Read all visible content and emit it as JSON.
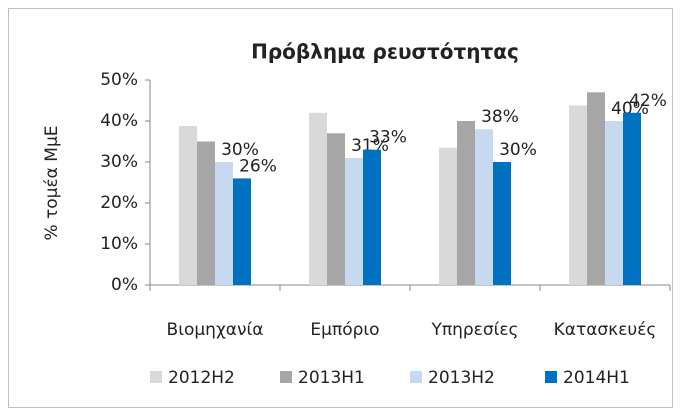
{
  "chart_data": {
    "type": "bar",
    "title": "Πρόβλημα ρευστότητας",
    "y_label": "% τομέα ΜμΕ",
    "categories": [
      "Βιομηχανία",
      "Εμπόριο",
      "Υπηρεσίες",
      "Κατασκευές"
    ],
    "series": [
      {
        "name": "2012H2",
        "color": "#d9d9d9",
        "values": [
          38.8,
          42,
          33.5,
          43.8
        ]
      },
      {
        "name": "2013H1",
        "color": "#a6a6a6",
        "values": [
          35,
          37,
          40,
          47
        ]
      },
      {
        "name": "2013H2",
        "color": "#c6d9f1",
        "values": [
          30,
          31,
          38,
          40
        ],
        "value_labels": [
          "30%",
          "31%",
          "38%",
          "40%"
        ]
      },
      {
        "name": "2014H1",
        "color": "#0070c0",
        "values": [
          26,
          33,
          30,
          42
        ],
        "value_labels": [
          "26%",
          "33%",
          "30%",
          "42%"
        ]
      }
    ],
    "ylim": [
      0,
      50
    ],
    "yticks": [
      {
        "value": 0,
        "label": "0%"
      },
      {
        "value": 10,
        "label": "10%"
      },
      {
        "value": 20,
        "label": "20%"
      },
      {
        "value": 30,
        "label": "30%"
      },
      {
        "value": 40,
        "label": "40%"
      },
      {
        "value": 50,
        "label": "50%"
      }
    ],
    "grid": false,
    "legend": "bottom"
  }
}
